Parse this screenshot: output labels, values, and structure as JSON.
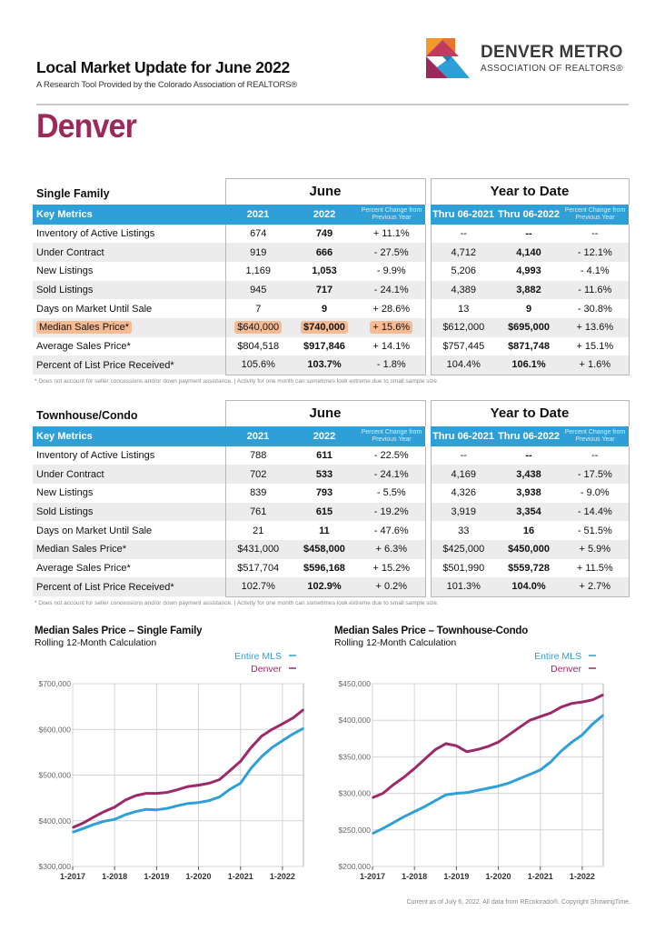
{
  "header": {
    "title": "Local Market Update for June 2022",
    "subtitle": "A Research Tool Provided by the Colorado Association of REALTORS®",
    "city": "Denver"
  },
  "logo": {
    "line1": "DENVER METRO",
    "line2": "ASSOCIATION OF REALTORS®"
  },
  "colors": {
    "accent": "#2f9fd8",
    "city": "#9b2a5b",
    "denver_line": "#9b2a6a",
    "mls_line": "#2f9fd8",
    "highlight": "#f7bb94"
  },
  "single_family": {
    "section_title": "Single Family",
    "group_month": "June",
    "group_ytd": "Year to Date",
    "headers": [
      "Key Metrics",
      "2021",
      "2022",
      "Percent Change from Previous Year",
      "Thru 06-2021",
      "Thru 06-2022",
      "Percent Change from Previous Year"
    ],
    "rows": [
      [
        "Inventory of Active Listings",
        "674",
        "749",
        "+ 11.1%",
        "--",
        "--",
        "--"
      ],
      [
        "Under Contract",
        "919",
        "666",
        "- 27.5%",
        "4,712",
        "4,140",
        "- 12.1%"
      ],
      [
        "New Listings",
        "1,169",
        "1,053",
        "- 9.9%",
        "5,206",
        "4,993",
        "- 4.1%"
      ],
      [
        "Sold Listings",
        "945",
        "717",
        "- 24.1%",
        "4,389",
        "3,882",
        "- 11.6%"
      ],
      [
        "Days on Market Until Sale",
        "7",
        "9",
        "+ 28.6%",
        "13",
        "9",
        "- 30.8%"
      ],
      [
        "Median Sales Price*",
        "$640,000",
        "$740,000",
        "+ 15.6%",
        "$612,000",
        "$695,000",
        "+ 13.6%"
      ],
      [
        "Average Sales Price*",
        "$804,518",
        "$917,846",
        "+ 14.1%",
        "$757,445",
        "$871,748",
        "+ 15.1%"
      ],
      [
        "Percent of List Price Received*",
        "105.6%",
        "103.7%",
        "- 1.8%",
        "104.4%",
        "106.1%",
        "+ 1.6%"
      ]
    ],
    "highlight_row": 5,
    "footnote": "* Does not account for seller concessions and/or down payment assistance.  |  Activity for one month can sometimes look extreme due to small sample size."
  },
  "townhouse": {
    "section_title": "Townhouse/Condo",
    "group_month": "June",
    "group_ytd": "Year to Date",
    "headers": [
      "Key Metrics",
      "2021",
      "2022",
      "Percent Change from Previous Year",
      "Thru 06-2021",
      "Thru 06-2022",
      "Percent Change from Previous Year"
    ],
    "rows": [
      [
        "Inventory of Active Listings",
        "788",
        "611",
        "- 22.5%",
        "--",
        "--",
        "--"
      ],
      [
        "Under Contract",
        "702",
        "533",
        "- 24.1%",
        "4,169",
        "3,438",
        "- 17.5%"
      ],
      [
        "New Listings",
        "839",
        "793",
        "- 5.5%",
        "4,326",
        "3,938",
        "- 9.0%"
      ],
      [
        "Sold Listings",
        "761",
        "615",
        "- 19.2%",
        "3,919",
        "3,354",
        "- 14.4%"
      ],
      [
        "Days on Market Until Sale",
        "21",
        "11",
        "- 47.6%",
        "33",
        "16",
        "- 51.5%"
      ],
      [
        "Median Sales Price*",
        "$431,000",
        "$458,000",
        "+ 6.3%",
        "$425,000",
        "$450,000",
        "+ 5.9%"
      ],
      [
        "Average Sales Price*",
        "$517,704",
        "$596,168",
        "+ 15.2%",
        "$501,990",
        "$559,728",
        "+ 11.5%"
      ],
      [
        "Percent of List Price Received*",
        "102.7%",
        "102.9%",
        "+ 0.2%",
        "101.3%",
        "104.0%",
        "+ 2.7%"
      ]
    ],
    "highlight_row": -1,
    "footnote": "* Does not account for seller concessions and/or down payment assistance.  |  Activity for one month can sometimes look extreme due to small sample size."
  },
  "chart_data": [
    {
      "type": "line",
      "title": "Median Sales Price – Single Family",
      "subtitle": "Rolling 12-Month Calculation",
      "ylim": [
        300000,
        700000
      ],
      "yticks": [
        300000,
        400000,
        500000,
        600000,
        700000
      ],
      "ytick_labels": [
        "$300,000",
        "$400,000",
        "$500,000",
        "$600,000",
        "$700,000"
      ],
      "xlim": [
        2017.0,
        2022.5
      ],
      "xticks": [
        2017,
        2018,
        2019,
        2020,
        2021,
        2022
      ],
      "xtick_labels": [
        "1-2017",
        "1-2018",
        "1-2019",
        "1-2020",
        "1-2021",
        "1-2022"
      ],
      "grid": true,
      "legend": "top-right",
      "series": [
        {
          "name": "Entire MLS",
          "color": "#2f9fd8",
          "x": [
            2017.0,
            2017.25,
            2017.5,
            2017.75,
            2018.0,
            2018.25,
            2018.5,
            2018.75,
            2019.0,
            2019.25,
            2019.5,
            2019.75,
            2020.0,
            2020.25,
            2020.5,
            2020.75,
            2021.0,
            2021.25,
            2021.5,
            2021.75,
            2022.0,
            2022.25,
            2022.5
          ],
          "y": [
            375000,
            383000,
            392000,
            399000,
            403000,
            413000,
            420000,
            425000,
            424000,
            427000,
            433000,
            438000,
            440000,
            444000,
            452000,
            469000,
            482000,
            515000,
            540000,
            560000,
            575000,
            590000,
            602000
          ]
        },
        {
          "name": "Denver",
          "color": "#9b2a6a",
          "x": [
            2017.0,
            2017.25,
            2017.5,
            2017.75,
            2018.0,
            2018.25,
            2018.5,
            2018.75,
            2019.0,
            2019.25,
            2019.5,
            2019.75,
            2020.0,
            2020.25,
            2020.5,
            2020.75,
            2021.0,
            2021.25,
            2021.5,
            2021.75,
            2022.0,
            2022.25,
            2022.5
          ],
          "y": [
            385000,
            395000,
            408000,
            420000,
            430000,
            445000,
            455000,
            460000,
            460000,
            462000,
            468000,
            475000,
            478000,
            482000,
            490000,
            510000,
            530000,
            560000,
            585000,
            600000,
            612000,
            625000,
            643000
          ]
        }
      ]
    },
    {
      "type": "line",
      "title": "Median Sales Price – Townhouse-Condo",
      "subtitle": "Rolling 12-Month Calculation",
      "ylim": [
        200000,
        450000
      ],
      "yticks": [
        200000,
        250000,
        300000,
        350000,
        400000,
        450000
      ],
      "ytick_labels": [
        "$200,000",
        "$250,000",
        "$300,000",
        "$350,000",
        "$400,000",
        "$450,000"
      ],
      "xlim": [
        2017.0,
        2022.5
      ],
      "xticks": [
        2017,
        2018,
        2019,
        2020,
        2021,
        2022
      ],
      "xtick_labels": [
        "1-2017",
        "1-2018",
        "1-2019",
        "1-2020",
        "1-2021",
        "1-2022"
      ],
      "grid": true,
      "legend": "top-right",
      "series": [
        {
          "name": "Entire MLS",
          "color": "#2f9fd8",
          "x": [
            2017.0,
            2017.25,
            2017.5,
            2017.75,
            2018.0,
            2018.25,
            2018.5,
            2018.75,
            2019.0,
            2019.25,
            2019.5,
            2019.75,
            2020.0,
            2020.25,
            2020.5,
            2020.75,
            2021.0,
            2021.25,
            2021.5,
            2021.75,
            2022.0,
            2022.25,
            2022.5
          ],
          "y": [
            245000,
            252000,
            260000,
            268000,
            275000,
            282000,
            290000,
            298000,
            300000,
            301000,
            304000,
            307000,
            310000,
            314000,
            320000,
            326000,
            332000,
            343000,
            358000,
            370000,
            380000,
            395000,
            407000
          ]
        },
        {
          "name": "Denver",
          "color": "#9b2a6a",
          "x": [
            2017.0,
            2017.25,
            2017.5,
            2017.75,
            2018.0,
            2018.25,
            2018.5,
            2018.75,
            2019.0,
            2019.25,
            2019.5,
            2019.75,
            2020.0,
            2020.25,
            2020.5,
            2020.75,
            2021.0,
            2021.25,
            2021.5,
            2021.75,
            2022.0,
            2022.25,
            2022.5
          ],
          "y": [
            294000,
            300000,
            312000,
            322000,
            334000,
            347000,
            360000,
            368000,
            365000,
            357000,
            360000,
            364000,
            370000,
            380000,
            390000,
            400000,
            405000,
            410000,
            418000,
            423000,
            425000,
            428000,
            435000
          ]
        }
      ]
    }
  ],
  "credit": "Current as of July 6, 2022. All data from REcolorado®. Copyright ShowingTime."
}
